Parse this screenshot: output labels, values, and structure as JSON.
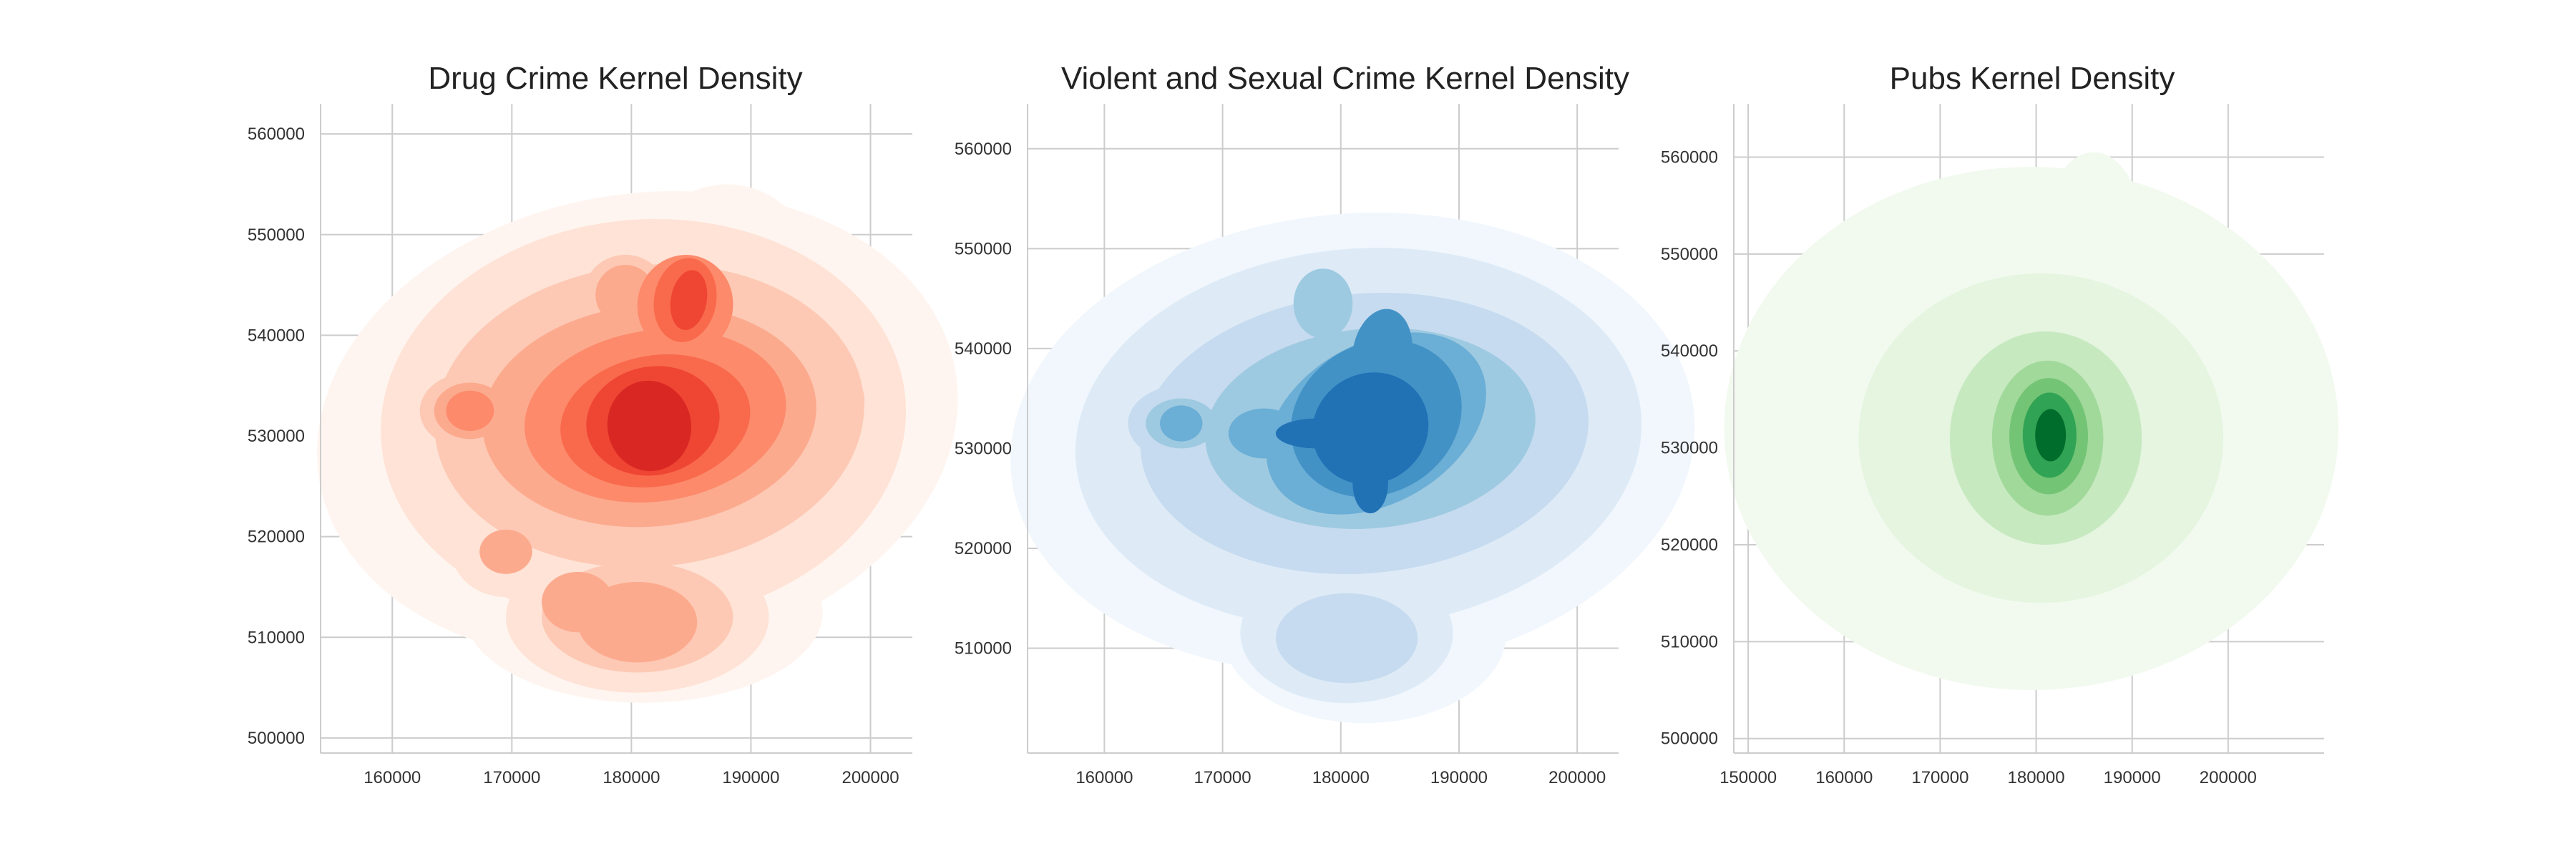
{
  "chart_data": [
    {
      "type": "heatmap",
      "kind": "kde-filled-contour",
      "title": "Drug Crime Kernel Density",
      "colormap": "Reds",
      "contour_colors": [
        "#fff5f0",
        "#fee3d6",
        "#fdc9b4",
        "#fcaa8e",
        "#fc8a6b",
        "#f9694c",
        "#ef4533",
        "#d92723",
        "#bb151a"
      ],
      "grid": true,
      "xlim": [
        154000,
        203500
      ],
      "ylim": [
        498500,
        563000
      ],
      "xticks": [
        160000,
        170000,
        180000,
        190000,
        200000
      ],
      "yticks": [
        500000,
        510000,
        520000,
        530000,
        540000,
        550000,
        560000
      ],
      "xlabel": "",
      "ylabel": "",
      "hotspots": [
        {
          "x": 181500,
          "y": 531500,
          "level": 8
        },
        {
          "x": 184500,
          "y": 543500,
          "level": 6
        },
        {
          "x": 166500,
          "y": 532500,
          "level": 4
        },
        {
          "x": 179500,
          "y": 544000,
          "level": 3
        },
        {
          "x": 169500,
          "y": 518500,
          "level": 3
        },
        {
          "x": 180500,
          "y": 512000,
          "level": 3
        },
        {
          "x": 175500,
          "y": 513500,
          "level": 2
        },
        {
          "x": 193500,
          "y": 533500,
          "level": 2
        },
        {
          "x": 172000,
          "y": 533500,
          "level": 2
        }
      ]
    },
    {
      "type": "heatmap",
      "kind": "kde-filled-contour",
      "title": "Violent and Sexual Crime Kernel Density",
      "colormap": "Blues",
      "contour_colors": [
        "#f1f7fd",
        "#deebf7",
        "#c6dbef",
        "#9ecae1",
        "#6baed6",
        "#4292c6",
        "#2171b5",
        "#0c56a0"
      ],
      "grid": true,
      "xlim": [
        153500,
        203500
      ],
      "ylim": [
        499500,
        564500
      ],
      "xticks": [
        160000,
        170000,
        180000,
        190000,
        200000
      ],
      "yticks": [
        510000,
        520000,
        530000,
        540000,
        550000,
        560000
      ],
      "xlabel": "",
      "ylabel": "",
      "hotspots": [
        {
          "x": 181500,
          "y": 531500,
          "level": 7
        },
        {
          "x": 183500,
          "y": 539000,
          "level": 5
        },
        {
          "x": 166500,
          "y": 532500,
          "level": 4
        },
        {
          "x": 178500,
          "y": 544500,
          "level": 3
        },
        {
          "x": 173500,
          "y": 531500,
          "level": 3
        },
        {
          "x": 188500,
          "y": 532000,
          "level": 3
        },
        {
          "x": 180500,
          "y": 511000,
          "level": 3
        },
        {
          "x": 177500,
          "y": 513500,
          "level": 2
        },
        {
          "x": 168500,
          "y": 519500,
          "level": 2
        },
        {
          "x": 194500,
          "y": 535500,
          "level": 2
        }
      ]
    },
    {
      "type": "heatmap",
      "kind": "kde-filled-contour",
      "title": "Pubs Kernel Density",
      "colormap": "Greens",
      "contour_colors": [
        "#f2faef",
        "#e5f5e0",
        "#c7e9c0",
        "#a1d99b",
        "#74c476",
        "#31a354",
        "#006d2c"
      ],
      "grid": true,
      "xlim": [
        148500,
        210000
      ],
      "ylim": [
        498500,
        565500
      ],
      "xticks": [
        150000,
        160000,
        170000,
        180000,
        190000,
        200000
      ],
      "yticks": [
        500000,
        510000,
        520000,
        530000,
        540000,
        550000,
        560000
      ],
      "xlabel": "",
      "ylabel": "",
      "hotspots": [
        {
          "x": 181500,
          "y": 531000,
          "level": 6
        },
        {
          "x": 186000,
          "y": 553000,
          "level": 1
        },
        {
          "x": 177000,
          "y": 518000,
          "level": 1
        }
      ]
    }
  ]
}
